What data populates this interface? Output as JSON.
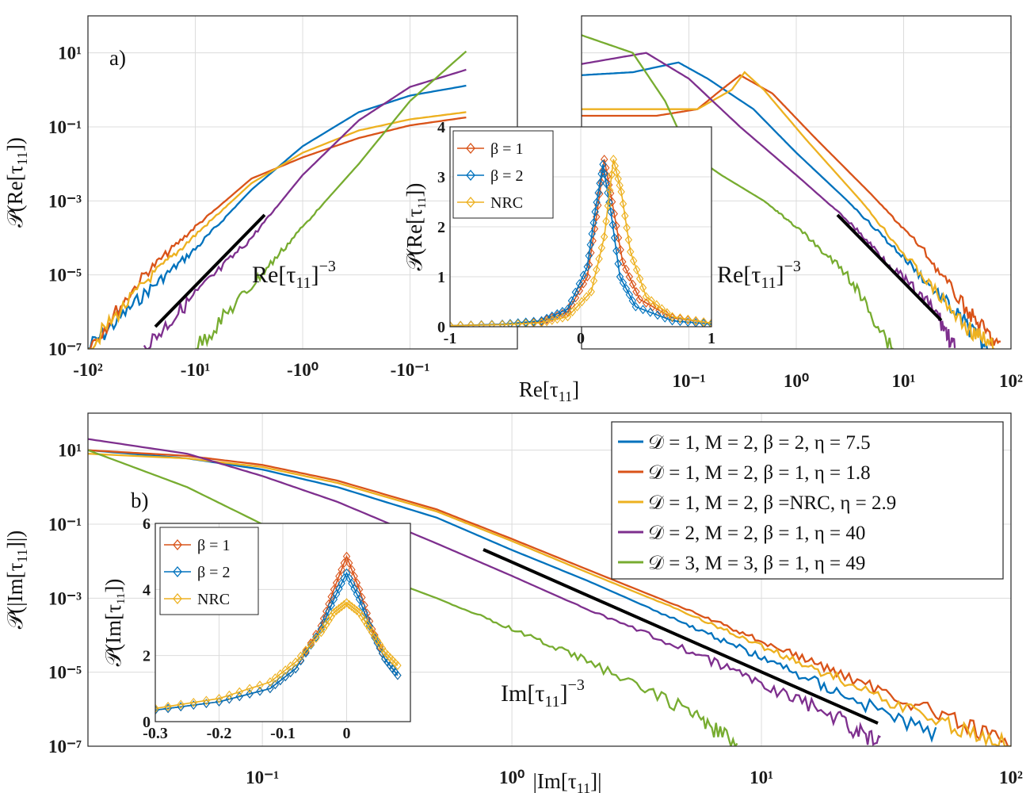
{
  "figure": {
    "panel_a_label": "a)",
    "panel_b_label": "b)",
    "legend": [
      {
        "label": "𝒟 = 1, M = 2, β = 2, η = 7.5",
        "color": "#0072BD"
      },
      {
        "label": "𝒟 = 1, M = 2, β = 1, η = 1.8",
        "color": "#D95319"
      },
      {
        "label": "𝒟 = 1, M = 2, β =NRC, η = 2.9",
        "color": "#EDB120"
      },
      {
        "label": "𝒟 = 2, M = 2, β = 1, η = 40",
        "color": "#7E2F8E"
      },
      {
        "label": "𝒟 = 3, M = 3, β = 1, η = 49",
        "color": "#77AC30"
      }
    ]
  },
  "chart_data": [
    {
      "id": "panel-a-negative",
      "type": "line",
      "xscale": "symlog-negative",
      "yscale": "log",
      "ylabel": "𝒫(Re[τ11])",
      "xlabel": "Re[τ11]",
      "ylim": [
        1e-07,
        100
      ],
      "x_ticks": [
        "-10²",
        "-10¹",
        "-10⁰",
        "-10⁻¹"
      ],
      "y_ticks": [
        "10¹",
        "10⁻¹",
        "10⁻³",
        "10⁻⁵",
        "10⁻⁷"
      ],
      "grid": true,
      "annotation": "Re[τ11]⁻³",
      "series": [
        {
          "name": "𝒟 = 1, M = 2, β = 2, η = 7.5",
          "color": "#0072BD",
          "x": [
            -100,
            -30,
            -10,
            -3,
            -1,
            -0.3,
            -0.1,
            -0.03
          ],
          "y": [
            1e-07,
            3e-06,
            5e-05,
            0.002,
            0.03,
            0.25,
            0.7,
            1.3
          ]
        },
        {
          "name": "𝒟 = 1, M = 2, β = 1, η = 1.8",
          "color": "#D95319",
          "x": [
            -100,
            -30,
            -10,
            -3,
            -1,
            -0.3,
            -0.1,
            -0.03
          ],
          "y": [
            1e-07,
            1e-05,
            0.0002,
            0.004,
            0.015,
            0.05,
            0.11,
            0.18
          ]
        },
        {
          "name": "𝒟 = 1, M = 2, β =NRC, η = 2.9",
          "color": "#EDB120",
          "x": [
            -100,
            -30,
            -10,
            -3,
            -1,
            -0.3,
            -0.1,
            -0.03
          ],
          "y": [
            1e-07,
            6e-06,
            0.00012,
            0.003,
            0.02,
            0.08,
            0.16,
            0.25
          ]
        },
        {
          "name": "𝒟 = 2, M = 2, β = 1, η = 40",
          "color": "#7E2F8E",
          "x": [
            -30,
            -10,
            -3,
            -1,
            -0.3,
            -0.1,
            -0.03
          ],
          "y": [
            1e-07,
            3e-06,
            0.0001,
            0.005,
            0.15,
            1.2,
            3.5
          ]
        },
        {
          "name": "𝒟 = 3, M = 3, β = 1, η = 49",
          "color": "#77AC30",
          "x": [
            -10,
            -3,
            -1,
            -0.3,
            -0.1,
            -0.03
          ],
          "y": [
            1e-07,
            5e-06,
            0.0002,
            0.01,
            0.5,
            11
          ]
        }
      ]
    },
    {
      "id": "panel-a-positive",
      "type": "line",
      "xscale": "symlog-positive",
      "yscale": "log",
      "ylim": [
        1e-07,
        100
      ],
      "x_ticks": [
        "10⁻¹",
        "10⁰",
        "10¹",
        "10²"
      ],
      "grid": true,
      "annotation": "Re[τ11]⁻³",
      "series": [
        {
          "name": "𝒟 = 1, M = 2, β = 2, η = 7.5",
          "color": "#0072BD",
          "x": [
            0.01,
            0.03,
            0.08,
            0.15,
            0.4,
            1,
            3,
            10,
            30,
            60
          ],
          "y": [
            2.5,
            3.0,
            5.5,
            2.0,
            0.3,
            0.02,
            0.001,
            3e-05,
            1e-06,
            1e-07
          ]
        },
        {
          "name": "𝒟 = 1, M = 2, β = 1, η = 1.8",
          "color": "#D95319",
          "x": [
            0.01,
            0.05,
            0.12,
            0.2,
            0.3,
            0.6,
            1.5,
            5,
            15,
            40,
            80
          ],
          "y": [
            0.2,
            0.2,
            0.3,
            1.0,
            2.5,
            0.8,
            0.05,
            0.0015,
            5e-05,
            1e-06,
            1e-07
          ]
        },
        {
          "name": "𝒟 = 1, M = 2, β =NRC, η = 2.9",
          "color": "#EDB120",
          "x": [
            0.01,
            0.05,
            0.12,
            0.25,
            0.33,
            0.5,
            1.2,
            4,
            12,
            35,
            70
          ],
          "y": [
            0.3,
            0.3,
            0.3,
            1.0,
            3.0,
            1.0,
            0.05,
            0.001,
            2e-05,
            5e-07,
            1e-07
          ]
        },
        {
          "name": "𝒟 = 2, M = 2, β = 1, η = 40",
          "color": "#7E2F8E",
          "x": [
            0.01,
            0.04,
            0.1,
            0.3,
            1,
            3,
            8,
            20,
            30
          ],
          "y": [
            5.0,
            10,
            2.0,
            0.1,
            0.005,
            0.0003,
            1.5e-05,
            1e-06,
            1e-07
          ]
        },
        {
          "name": "𝒟 = 3, M = 3, β = 1, η = 49",
          "color": "#77AC30",
          "x": [
            0.01,
            0.03,
            0.06,
            0.1,
            0.2,
            0.5,
            1,
            3,
            8
          ],
          "y": [
            30,
            10,
            0.5,
            0.02,
            0.005,
            0.001,
            0.0002,
            1e-05,
            1e-07
          ]
        }
      ]
    },
    {
      "id": "inset-a",
      "type": "line",
      "ylabel": "𝒫(Re[τ11])",
      "xlim": [
        -1,
        1
      ],
      "ylim": [
        0,
        4
      ],
      "x_ticks": [
        "-1",
        "0",
        "1"
      ],
      "y_ticks": [
        "0",
        "1",
        "2",
        "3",
        "4"
      ],
      "grid": true,
      "series": [
        {
          "name": "β = 1",
          "color": "#D95319",
          "x": [
            -1,
            -0.6,
            -0.3,
            -0.1,
            0.05,
            0.12,
            0.18,
            0.24,
            0.32,
            0.45,
            0.7,
            1
          ],
          "y": [
            0.02,
            0.05,
            0.1,
            0.3,
            1.0,
            2.2,
            3.35,
            2.5,
            1.3,
            0.55,
            0.18,
            0.07
          ]
        },
        {
          "name": "β = 2",
          "color": "#0072BD",
          "x": [
            -1,
            -0.6,
            -0.3,
            -0.1,
            0.05,
            0.11,
            0.17,
            0.23,
            0.3,
            0.42,
            0.7,
            1
          ],
          "y": [
            0.02,
            0.05,
            0.12,
            0.35,
            1.2,
            2.3,
            3.25,
            2.3,
            1.0,
            0.4,
            0.12,
            0.05
          ]
        },
        {
          "name": "NRC",
          "color": "#EDB120",
          "x": [
            -1,
            -0.6,
            -0.3,
            -0.1,
            0.08,
            0.18,
            0.25,
            0.31,
            0.38,
            0.5,
            0.7,
            1
          ],
          "y": [
            0.02,
            0.04,
            0.08,
            0.2,
            0.7,
            1.8,
            3.35,
            2.7,
            1.5,
            0.6,
            0.2,
            0.07
          ]
        }
      ]
    },
    {
      "id": "panel-b",
      "type": "line",
      "xscale": "log",
      "yscale": "log",
      "ylabel": "𝒫(|Im[τ11]|)",
      "xlabel": "|Im[τ11]|",
      "xlim": [
        0.02,
        100
      ],
      "ylim": [
        1e-07,
        100
      ],
      "x_ticks": [
        "10⁻¹",
        "10⁰",
        "10¹",
        "10²"
      ],
      "y_ticks": [
        "10¹",
        "10⁻¹",
        "10⁻³",
        "10⁻⁵",
        "10⁻⁷"
      ],
      "grid": true,
      "annotation": "Im[τ11]⁻³",
      "series": [
        {
          "name": "𝒟 = 1, M = 2, β = 2, η = 7.5",
          "color": "#0072BD",
          "x": [
            0.02,
            0.05,
            0.1,
            0.2,
            0.5,
            1,
            2,
            5,
            10,
            20,
            50
          ],
          "y": [
            10,
            6.0,
            3.0,
            1.0,
            0.15,
            0.02,
            0.003,
            0.0002,
            2.5e-05,
            3e-06,
            2e-07
          ]
        },
        {
          "name": "𝒟 = 1, M = 2, β = 1, η = 1.8",
          "color": "#D95319",
          "x": [
            0.02,
            0.05,
            0.1,
            0.2,
            0.5,
            1,
            2,
            5,
            10,
            20,
            50,
            100
          ],
          "y": [
            10,
            7.0,
            4.0,
            1.5,
            0.25,
            0.04,
            0.006,
            0.0005,
            7e-05,
            1e-05,
            8e-07,
            1e-07
          ]
        },
        {
          "name": "𝒟 = 1, M = 2, β =NRC, η = 2.9",
          "color": "#EDB120",
          "x": [
            0.02,
            0.05,
            0.1,
            0.2,
            0.5,
            1,
            2,
            5,
            10,
            20,
            50,
            100
          ],
          "y": [
            8.0,
            6.0,
            3.5,
            1.3,
            0.22,
            0.035,
            0.005,
            0.0004,
            5e-05,
            7e-06,
            5e-07,
            1e-07
          ]
        },
        {
          "name": "𝒟 = 2, M = 2, β = 1, η = 40",
          "color": "#7E2F8E",
          "x": [
            0.02,
            0.05,
            0.1,
            0.2,
            0.5,
            1,
            2,
            5,
            10,
            20,
            30
          ],
          "y": [
            20,
            8.0,
            2.0,
            0.4,
            0.03,
            0.004,
            0.0005,
            4e-05,
            5e-06,
            6e-07,
            1e-07
          ]
        },
        {
          "name": "𝒟 = 3, M = 3, β = 1, η = 49",
          "color": "#77AC30",
          "x": [
            0.02,
            0.05,
            0.1,
            0.2,
            0.5,
            1,
            2,
            5,
            8
          ],
          "y": [
            10,
            1.0,
            0.1,
            0.01,
            0.001,
            0.00015,
            2e-05,
            1e-06,
            1e-07
          ]
        }
      ]
    },
    {
      "id": "inset-b",
      "type": "line",
      "ylabel": "𝒫(Im[τ11])",
      "xlim": [
        -0.3,
        0.1
      ],
      "ylim": [
        0,
        6
      ],
      "x_ticks": [
        "-0.3",
        "-0.2",
        "-0.1",
        "0"
      ],
      "y_ticks": [
        "0",
        "2",
        "4",
        "6"
      ],
      "grid": true,
      "series": [
        {
          "name": "β = 1",
          "color": "#D95319",
          "x": [
            -0.3,
            -0.2,
            -0.12,
            -0.08,
            -0.04,
            -0.02,
            0,
            0.02,
            0.04,
            0.06,
            0.08
          ],
          "y": [
            0.35,
            0.6,
            1.0,
            1.6,
            2.9,
            4.0,
            5.0,
            4.0,
            2.8,
            1.9,
            1.4
          ]
        },
        {
          "name": "β = 2",
          "color": "#0072BD",
          "x": [
            -0.3,
            -0.2,
            -0.12,
            -0.08,
            -0.04,
            -0.02,
            0,
            0.02,
            0.04,
            0.06,
            0.08
          ],
          "y": [
            0.35,
            0.6,
            1.0,
            1.6,
            2.8,
            3.7,
            4.5,
            3.7,
            2.7,
            1.9,
            1.4
          ]
        },
        {
          "name": "NRC",
          "color": "#EDB120",
          "x": [
            -0.3,
            -0.2,
            -0.12,
            -0.08,
            -0.04,
            -0.02,
            0,
            0.02,
            0.04,
            0.06,
            0.08
          ],
          "y": [
            0.4,
            0.7,
            1.2,
            1.8,
            2.7,
            3.3,
            3.6,
            3.3,
            2.7,
            2.1,
            1.7
          ]
        }
      ]
    }
  ]
}
